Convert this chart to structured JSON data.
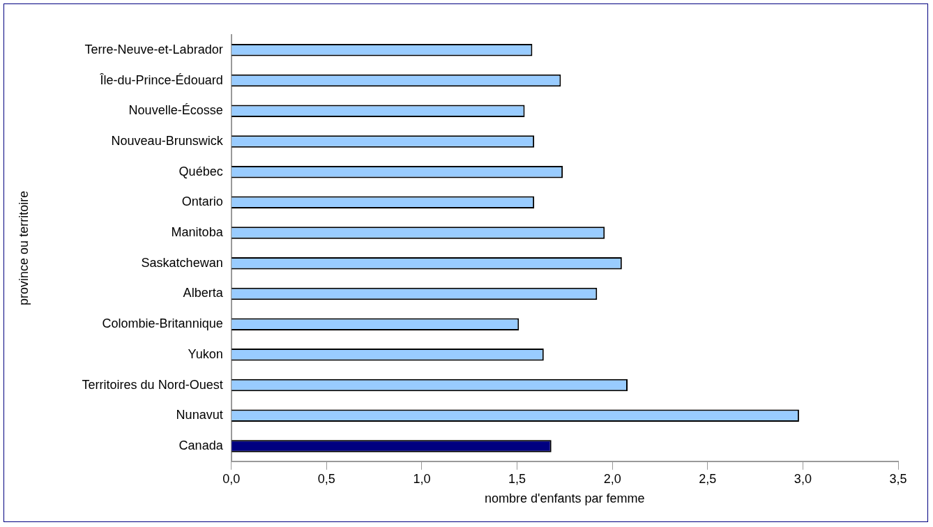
{
  "chart_data": {
    "type": "bar",
    "orientation": "horizontal",
    "xlabel": "nombre d'enfants par femme",
    "ylabel": "province ou territoire",
    "categories": [
      "Terre-Neuve-et-Labrador",
      "Île-du-Prince-Édouard",
      "Nouvelle-Écosse",
      "Nouveau-Brunswick",
      "Québec",
      "Ontario",
      "Manitoba",
      "Saskatchewan",
      "Alberta",
      "Colombie-Britannique",
      "Yukon",
      "Territoires du Nord-Ouest",
      "Nunavut",
      "Canada"
    ],
    "values": [
      1.58,
      1.73,
      1.54,
      1.59,
      1.74,
      1.59,
      1.96,
      2.05,
      1.92,
      1.51,
      1.64,
      2.08,
      2.98,
      1.68
    ],
    "colors": [
      "#99ccff",
      "#99ccff",
      "#99ccff",
      "#99ccff",
      "#99ccff",
      "#99ccff",
      "#99ccff",
      "#99ccff",
      "#99ccff",
      "#99ccff",
      "#99ccff",
      "#99ccff",
      "#99ccff",
      "#000080"
    ],
    "xlim": [
      0,
      3.5
    ],
    "xticks": [
      {
        "value": 0,
        "label": "0,0"
      },
      {
        "value": 0.5,
        "label": "0,5"
      },
      {
        "value": 1,
        "label": "1,0"
      },
      {
        "value": 1.5,
        "label": "1,5"
      },
      {
        "value": 2,
        "label": "2,0"
      },
      {
        "value": 2.5,
        "label": "2,5"
      },
      {
        "value": 3,
        "label": "3,0"
      },
      {
        "value": 3.5,
        "label": "3,5"
      }
    ],
    "grid": false,
    "legend": false
  }
}
